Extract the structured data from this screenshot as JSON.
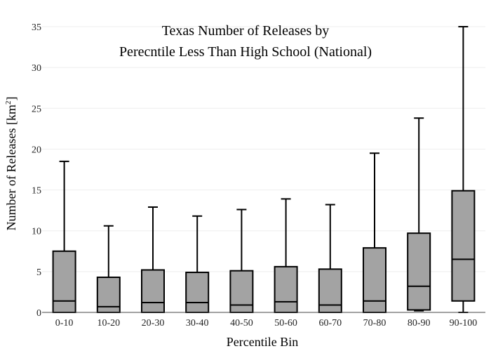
{
  "chart_data": {
    "type": "box",
    "title_lines": [
      "Texas Number of Releases by",
      "Perecntile Less Than High School (National)"
    ],
    "xlabel": "Percentile Bin",
    "ylabel_main": "Number of Releases  [km",
    "ylabel_sup": "2",
    "ylabel_close": "]",
    "ylim": [
      0,
      35
    ],
    "yticks": [
      0,
      5,
      10,
      15,
      20,
      25,
      30,
      35
    ],
    "grid": true,
    "categories": [
      "0-10",
      "10-20",
      "20-30",
      "30-40",
      "40-50",
      "50-60",
      "60-70",
      "70-80",
      "80-90",
      "90-100"
    ],
    "boxes": [
      {
        "min": 0,
        "q1": 0,
        "median": 1.4,
        "q3": 7.5,
        "max": 18.5
      },
      {
        "min": 0,
        "q1": 0,
        "median": 0.7,
        "q3": 4.3,
        "max": 10.6
      },
      {
        "min": 0,
        "q1": 0,
        "median": 1.2,
        "q3": 5.2,
        "max": 12.9
      },
      {
        "min": 0,
        "q1": 0,
        "median": 1.2,
        "q3": 4.9,
        "max": 11.8
      },
      {
        "min": 0,
        "q1": 0,
        "median": 0.9,
        "q3": 5.1,
        "max": 12.6
      },
      {
        "min": 0,
        "q1": 0,
        "median": 1.3,
        "q3": 5.6,
        "max": 13.9
      },
      {
        "min": 0,
        "q1": 0,
        "median": 0.9,
        "q3": 5.3,
        "max": 13.2
      },
      {
        "min": 0,
        "q1": 0,
        "median": 1.4,
        "q3": 7.9,
        "max": 19.5
      },
      {
        "min": 0.2,
        "q1": 0.3,
        "median": 3.2,
        "q3": 9.7,
        "max": 23.8
      },
      {
        "min": 0,
        "q1": 1.4,
        "median": 6.5,
        "q3": 14.9,
        "max": 35.0
      }
    ],
    "colors": {
      "box_fill": "#a3a3a3",
      "box_stroke": "#000000",
      "grid": "#eeeeee",
      "axis": "#444444",
      "text": "#222222"
    }
  }
}
